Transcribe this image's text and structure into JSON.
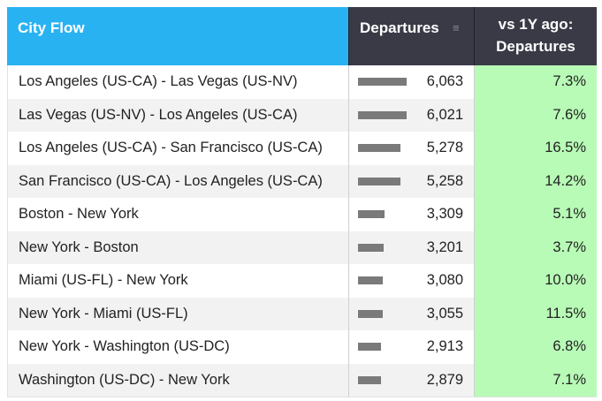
{
  "header": {
    "city_flow": "City Flow",
    "departures": "Departures",
    "vs_line1": "vs 1Y ago:",
    "vs_line2": "Departures"
  },
  "rows": [
    {
      "city": "Los Angeles (US-CA) - Las Vegas (US-NV)",
      "departures": "6,063",
      "bar_fraction": 1.0,
      "vs": "7.3%"
    },
    {
      "city": "Las Vegas (US-NV) - Los Angeles (US-CA)",
      "departures": "6,021",
      "bar_fraction": 0.993,
      "vs": "7.6%"
    },
    {
      "city": "Los Angeles (US-CA) - San Francisco (US-CA)",
      "departures": "5,278",
      "bar_fraction": 0.871,
      "vs": "16.5%"
    },
    {
      "city": "San Francisco (US-CA) - Los Angeles (US-CA)",
      "departures": "5,258",
      "bar_fraction": 0.867,
      "vs": "14.2%"
    },
    {
      "city": "Boston - New York",
      "departures": "3,309",
      "bar_fraction": 0.546,
      "vs": "5.1%"
    },
    {
      "city": "New York - Boston",
      "departures": "3,201",
      "bar_fraction": 0.528,
      "vs": "3.7%"
    },
    {
      "city": "Miami (US-FL) - New York",
      "departures": "3,080",
      "bar_fraction": 0.508,
      "vs": "10.0%"
    },
    {
      "city": "New York - Miami (US-FL)",
      "departures": "3,055",
      "bar_fraction": 0.504,
      "vs": "11.5%"
    },
    {
      "city": "New York - Washington (US-DC)",
      "departures": "2,913",
      "bar_fraction": 0.48,
      "vs": "6.8%"
    },
    {
      "city": "Washington (US-DC) - New York",
      "departures": "2,879",
      "bar_fraction": 0.475,
      "vs": "7.1%"
    }
  ],
  "colors": {
    "city_header": "#29b2f2",
    "metric_header": "#3a3a47",
    "bar": "#7a7a7a",
    "vs_cell": "#b8fbb6"
  },
  "icons": {
    "sort": "sort-descending-icon"
  }
}
